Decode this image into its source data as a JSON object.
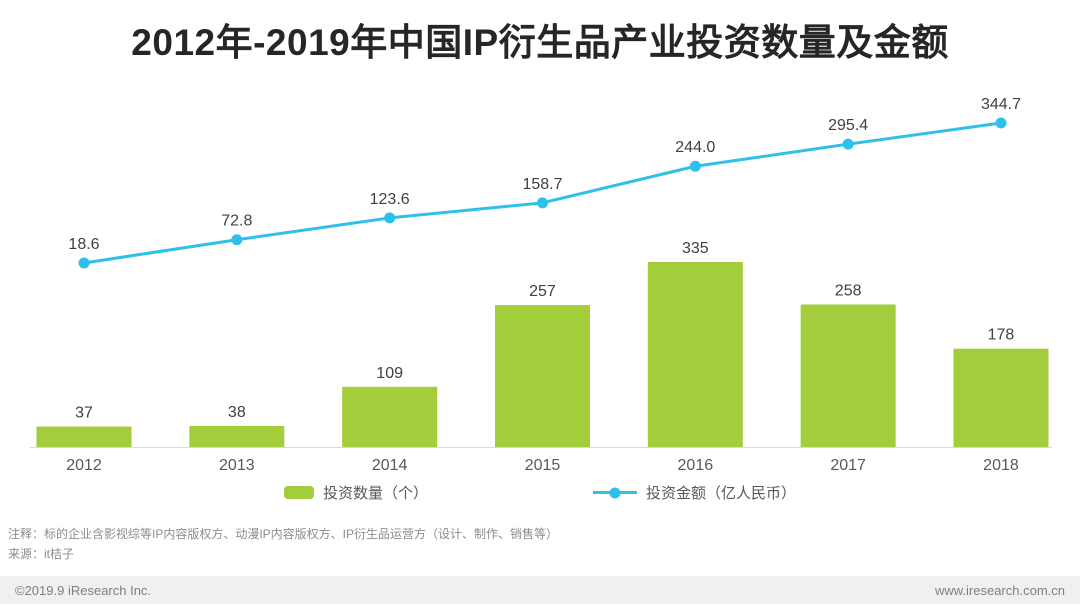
{
  "title": "2012年-2019年中国IP衍生品产业投资数量及金额",
  "chart_data": {
    "type": "bar+line",
    "title": "2012年-2019年中国IP衍生品产业投资数量及金额",
    "categories": [
      "2012",
      "2013",
      "2014",
      "2015",
      "2016",
      "2017",
      "2018"
    ],
    "series": [
      {
        "name": "投资数量（个）",
        "type": "bar",
        "color": "#a3cd3b",
        "values": [
          37,
          38,
          109,
          257,
          335,
          258,
          178
        ],
        "labels": [
          "37",
          "38",
          "109",
          "257",
          "335",
          "258",
          "178"
        ]
      },
      {
        "name": "投资金额（亿人民币）",
        "type": "line",
        "color": "#2ec0e9",
        "values": [
          18.6,
          72.8,
          123.6,
          158.7,
          244.0,
          295.4,
          344.7
        ],
        "labels": [
          "18.6",
          "72.8",
          "123.6",
          "158.7",
          "244.0",
          "295.4",
          "344.7"
        ]
      }
    ],
    "value_labels": true,
    "grid": false,
    "y_axis_visible": false,
    "legend_position": "bottom"
  },
  "legend": {
    "bar_label": "投资数量（个）",
    "line_label": "投资金额（亿人民币）"
  },
  "notes": {
    "annotation": "注释：标的企业含影视综等IP内容版权方、动漫IP内容版权方、IP衍生品运营方（设计、制作、销售等）",
    "source": "来源：it桔子"
  },
  "footer": {
    "left": "©2019.9 iResearch Inc.",
    "right": "www.iresearch.com.cn"
  }
}
